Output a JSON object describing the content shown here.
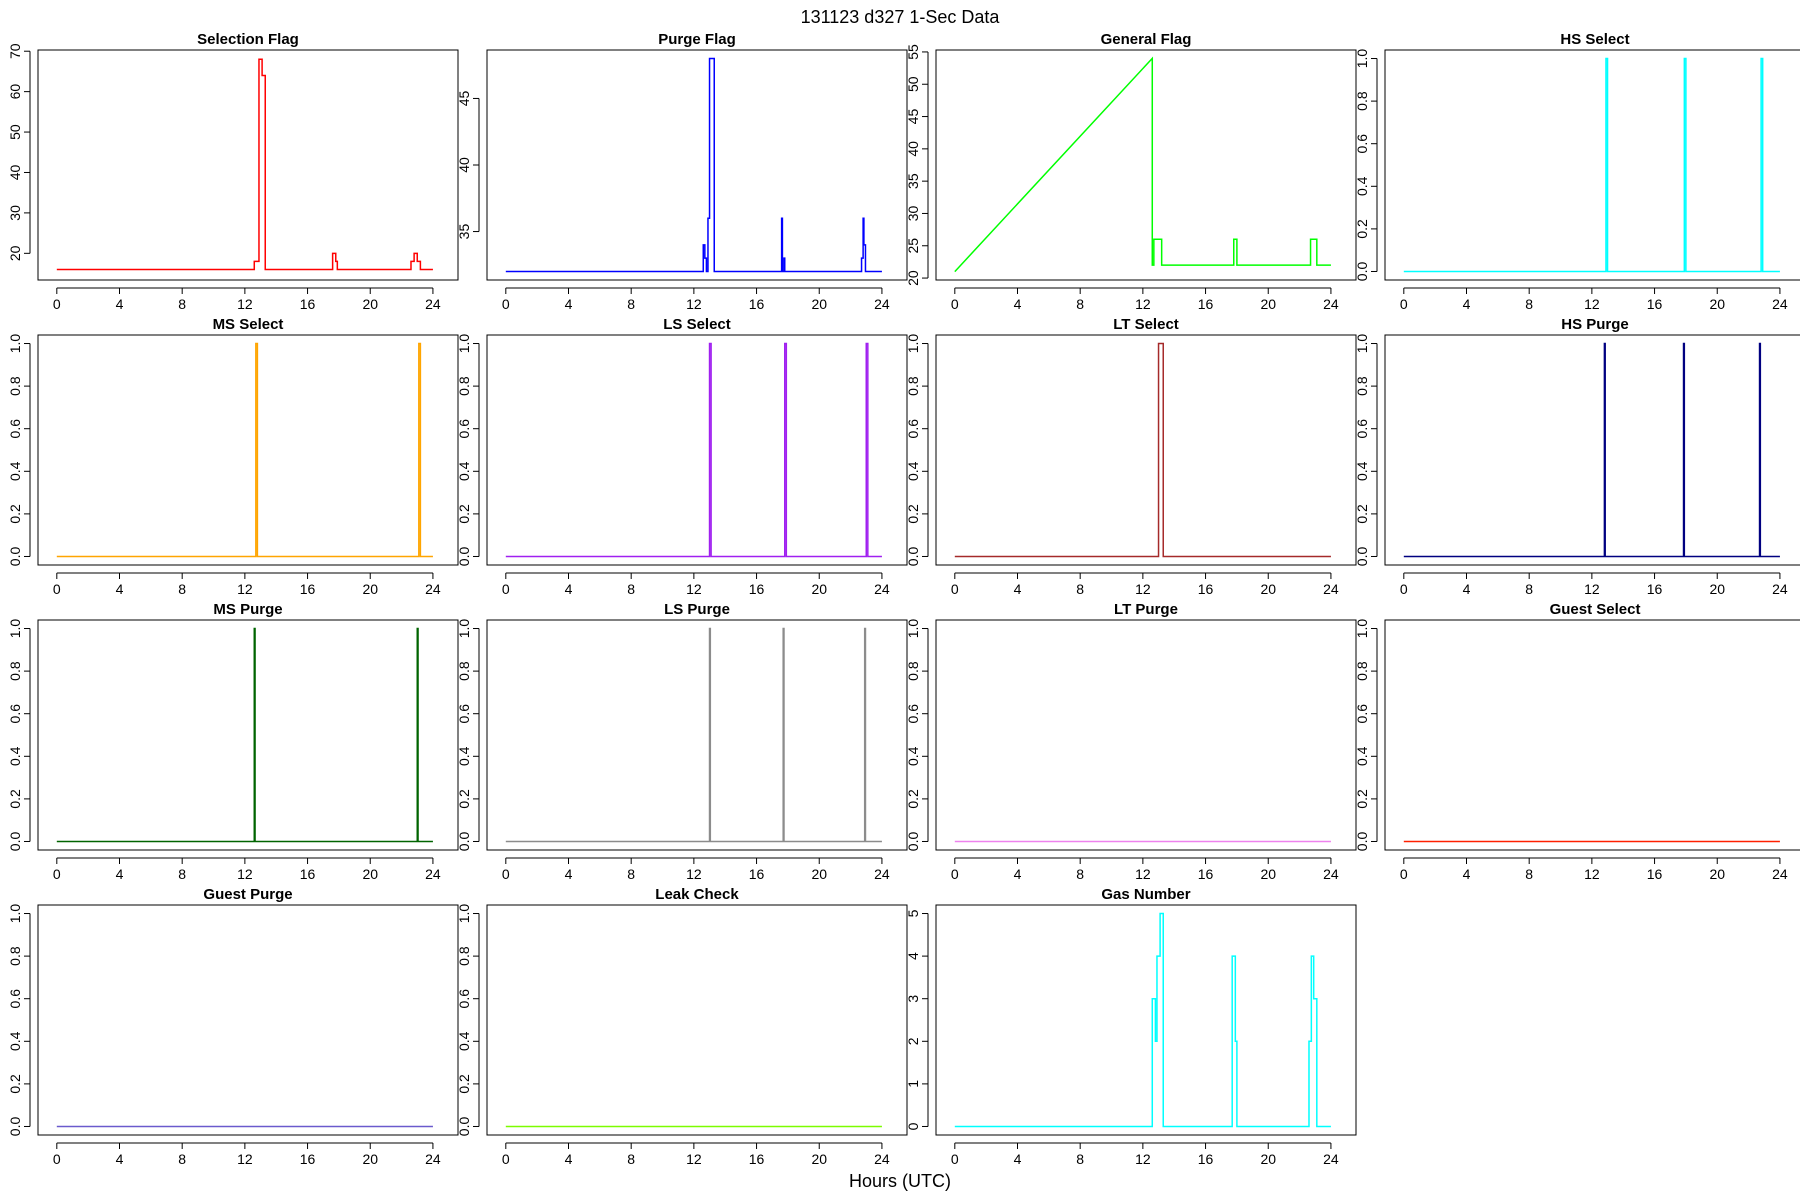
{
  "title": "131123   d327   1-Sec Data",
  "xlabel": "Hours (UTC)",
  "chart_data": [
    {
      "type": "line",
      "title": "Selection Flag",
      "color": "#ff0000",
      "xlim": [
        -1.2,
        25.6
      ],
      "xticks": [
        0,
        4,
        8,
        12,
        16,
        20,
        24
      ],
      "ylim": [
        13.4,
        70.3
      ],
      "yticks": [
        20,
        30,
        40,
        50,
        60,
        70
      ],
      "x": [
        0,
        12.6,
        12.6,
        12.9,
        12.9,
        13.1,
        13.1,
        13.3,
        13.3,
        17.6,
        17.6,
        17.8,
        17.8,
        17.9,
        17.9,
        22.6,
        22.6,
        22.8,
        22.8,
        23.0,
        23.0,
        23.2,
        23.2,
        24
      ],
      "values": [
        16,
        16,
        18,
        18,
        68,
        68,
        64,
        64,
        16,
        16,
        20,
        20,
        18,
        18,
        16,
        16,
        18,
        18,
        20,
        20,
        18,
        18,
        16,
        16
      ]
    },
    {
      "type": "line",
      "title": "Purge Flag",
      "color": "#0000ff",
      "xlim": [
        -1.2,
        25.6
      ],
      "xticks": [
        0,
        4,
        8,
        12,
        16,
        20,
        24
      ],
      "ylim": [
        31.36,
        48.64
      ],
      "yticks": [
        35,
        40,
        45
      ],
      "x": [
        0,
        12.6,
        12.6,
        12.7,
        12.7,
        12.8,
        12.8,
        12.9,
        12.9,
        13.0,
        13.0,
        13.3,
        13.3,
        17.6,
        17.6,
        17.65,
        17.65,
        17.75,
        17.75,
        17.8,
        17.8,
        22.7,
        22.7,
        22.8,
        22.8,
        22.85,
        22.85,
        22.95,
        22.95,
        24
      ],
      "values": [
        32,
        32,
        34,
        34,
        33,
        33,
        32,
        32,
        36,
        36,
        48,
        48,
        32,
        32,
        36,
        36,
        32,
        32,
        33,
        33,
        32,
        32,
        33,
        33,
        36,
        36,
        34,
        34,
        32,
        32
      ]
    },
    {
      "type": "line",
      "title": "General Flag",
      "color": "#00ff00",
      "xlim": [
        -1.2,
        25.6
      ],
      "xticks": [
        0,
        4,
        8,
        12,
        16,
        20,
        24
      ],
      "ylim": [
        19.7,
        55.3
      ],
      "yticks": [
        20,
        25,
        30,
        35,
        40,
        45,
        50,
        55
      ],
      "x": [
        0,
        12.6,
        12.6,
        12.7,
        12.7,
        13.2,
        13.2,
        17.8,
        17.8,
        18.0,
        18.0,
        22.7,
        22.7,
        23.1,
        23.1,
        23.3,
        23.3,
        24
      ],
      "values": [
        21,
        54,
        22,
        22,
        26,
        26,
        22,
        22,
        26,
        26,
        22,
        22,
        26,
        26,
        22,
        22,
        22,
        22
      ]
    },
    {
      "type": "line",
      "title": "HS Select",
      "color": "#00ffff",
      "xlim": [
        -1.2,
        25.6
      ],
      "xticks": [
        0,
        4,
        8,
        12,
        16,
        20,
        24
      ],
      "ylim": [
        -0.04,
        1.04
      ],
      "yticks": [
        {
          "value": 0,
          "label": "0.0"
        },
        0.2,
        0.4,
        0.6,
        0.8,
        {
          "value": 1,
          "label": "1.0"
        }
      ],
      "x": [
        0,
        12.9,
        12.9,
        13.0,
        13.0,
        17.9,
        17.9,
        18.0,
        18.0,
        22.8,
        22.8,
        22.9,
        22.9,
        24
      ],
      "values": [
        0,
        0,
        1,
        1,
        0,
        0,
        1,
        1,
        0,
        0,
        1,
        1,
        0,
        0
      ]
    },
    {
      "type": "line",
      "title": "MS Select",
      "color": "#ffa500",
      "xlim": [
        -1.2,
        25.6
      ],
      "xticks": [
        0,
        4,
        8,
        12,
        16,
        20,
        24
      ],
      "ylim": [
        -0.04,
        1.04
      ],
      "yticks": [
        {
          "value": 0,
          "label": "0.0"
        },
        0.2,
        0.4,
        0.6,
        0.8,
        {
          "value": 1,
          "label": "1.0"
        }
      ],
      "x": [
        0,
        12.7,
        12.7,
        12.8,
        12.8,
        23.1,
        23.1,
        23.2,
        23.2,
        24
      ],
      "values": [
        0,
        0,
        1,
        1,
        0,
        0,
        1,
        1,
        0,
        0
      ]
    },
    {
      "type": "line",
      "title": "LS Select",
      "color": "#a020f0",
      "xlim": [
        -1.2,
        25.6
      ],
      "xticks": [
        0,
        4,
        8,
        12,
        16,
        20,
        24
      ],
      "ylim": [
        -0.04,
        1.04
      ],
      "yticks": [
        {
          "value": 0,
          "label": "0.0"
        },
        0.2,
        0.4,
        0.6,
        0.8,
        {
          "value": 1,
          "label": "1.0"
        }
      ],
      "x": [
        0,
        13.0,
        13.0,
        13.1,
        13.1,
        17.8,
        17.8,
        17.9,
        17.9,
        23.0,
        23.0,
        23.1,
        23.1,
        24
      ],
      "values": [
        0,
        0,
        1,
        1,
        0,
        0,
        1,
        1,
        0,
        0,
        1,
        1,
        0,
        0
      ]
    },
    {
      "type": "line",
      "title": "LT Select",
      "color": "#a52a2a",
      "xlim": [
        -1.2,
        25.6
      ],
      "xticks": [
        0,
        4,
        8,
        12,
        16,
        20,
        24
      ],
      "ylim": [
        -0.04,
        1.04
      ],
      "yticks": [
        {
          "value": 0,
          "label": "0.0"
        },
        0.2,
        0.4,
        0.6,
        0.8,
        {
          "value": 1,
          "label": "1.0"
        }
      ],
      "x": [
        0,
        13.0,
        13.0,
        13.3,
        13.3,
        24
      ],
      "values": [
        0,
        0,
        1,
        1,
        0,
        0
      ]
    },
    {
      "type": "line",
      "title": "HS Purge",
      "color": "#000080",
      "xlim": [
        -1.2,
        25.6
      ],
      "xticks": [
        0,
        4,
        8,
        12,
        16,
        20,
        24
      ],
      "ylim": [
        -0.04,
        1.04
      ],
      "yticks": [
        {
          "value": 0,
          "label": "0.0"
        },
        0.2,
        0.4,
        0.6,
        0.8,
        {
          "value": 1,
          "label": "1.0"
        }
      ],
      "x": [
        0,
        12.8,
        12.8,
        12.85,
        12.85,
        17.85,
        17.85,
        17.9,
        17.9,
        22.7,
        22.7,
        22.75,
        22.75,
        24
      ],
      "values": [
        0,
        0,
        1,
        1,
        0,
        0,
        1,
        1,
        0,
        0,
        1,
        1,
        0,
        0
      ]
    },
    {
      "type": "line",
      "title": "MS Purge",
      "color": "#006400",
      "xlim": [
        -1.2,
        25.6
      ],
      "xticks": [
        0,
        4,
        8,
        12,
        16,
        20,
        24
      ],
      "ylim": [
        -0.04,
        1.04
      ],
      "yticks": [
        {
          "value": 0,
          "label": "0.0"
        },
        0.2,
        0.4,
        0.6,
        0.8,
        {
          "value": 1,
          "label": "1.0"
        }
      ],
      "x": [
        0,
        12.6,
        12.6,
        12.65,
        12.65,
        23.0,
        23.0,
        23.05,
        23.05,
        24
      ],
      "values": [
        0,
        0,
        1,
        1,
        0,
        0,
        1,
        1,
        0,
        0
      ]
    },
    {
      "type": "line",
      "title": "LS Purge",
      "color": "#8c8c8c",
      "xlim": [
        -1.2,
        25.6
      ],
      "xticks": [
        0,
        4,
        8,
        12,
        16,
        20,
        24
      ],
      "ylim": [
        -0.04,
        1.04
      ],
      "yticks": [
        {
          "value": 0,
          "label": "0.0"
        },
        0.2,
        0.4,
        0.6,
        0.8,
        {
          "value": 1,
          "label": "1.0"
        }
      ],
      "x": [
        0,
        13.0,
        13.0,
        13.05,
        13.05,
        17.7,
        17.7,
        17.75,
        17.75,
        22.9,
        22.9,
        22.95,
        22.95,
        24
      ],
      "values": [
        0,
        0,
        1,
        1,
        0,
        0,
        1,
        1,
        0,
        0,
        1,
        1,
        0,
        0
      ]
    },
    {
      "type": "line",
      "title": "LT Purge",
      "color": "#ee82ee",
      "xlim": [
        -1.2,
        25.6
      ],
      "xticks": [
        0,
        4,
        8,
        12,
        16,
        20,
        24
      ],
      "ylim": [
        -0.04,
        1.04
      ],
      "yticks": [
        {
          "value": 0,
          "label": "0.0"
        },
        0.2,
        0.4,
        0.6,
        0.8,
        {
          "value": 1,
          "label": "1.0"
        }
      ],
      "x": [
        0,
        24
      ],
      "values": [
        0,
        0
      ]
    },
    {
      "type": "line",
      "title": "Guest Select",
      "color": "#ff2000",
      "xlim": [
        -1.2,
        25.6
      ],
      "xticks": [
        0,
        4,
        8,
        12,
        16,
        20,
        24
      ],
      "ylim": [
        -0.04,
        1.04
      ],
      "yticks": [
        {
          "value": 0,
          "label": "0.0"
        },
        0.2,
        0.4,
        0.6,
        0.8,
        {
          "value": 1,
          "label": "1.0"
        }
      ],
      "x": [
        0,
        24
      ],
      "values": [
        0,
        0
      ]
    },
    {
      "type": "line",
      "title": "Guest Purge",
      "color": "#6a5acd",
      "xlim": [
        -1.2,
        25.6
      ],
      "xticks": [
        0,
        4,
        8,
        12,
        16,
        20,
        24
      ],
      "ylim": [
        -0.04,
        1.04
      ],
      "yticks": [
        {
          "value": 0,
          "label": "0.0"
        },
        0.2,
        0.4,
        0.6,
        0.8,
        {
          "value": 1,
          "label": "1.0"
        }
      ],
      "x": [
        0,
        24
      ],
      "values": [
        0,
        0
      ]
    },
    {
      "type": "line",
      "title": "Leak Check",
      "color": "#7cfc00",
      "xlim": [
        -1.2,
        25.6
      ],
      "xticks": [
        0,
        4,
        8,
        12,
        16,
        20,
        24
      ],
      "ylim": [
        -0.04,
        1.04
      ],
      "yticks": [
        {
          "value": 0,
          "label": "0.0"
        },
        0.2,
        0.4,
        0.6,
        0.8,
        {
          "value": 1,
          "label": "1.0"
        }
      ],
      "x": [
        0,
        24
      ],
      "values": [
        0,
        0
      ]
    },
    {
      "type": "line",
      "title": "Gas Number",
      "color": "#00ffff",
      "xlim": [
        -1.2,
        25.6
      ],
      "xticks": [
        0,
        4,
        8,
        12,
        16,
        20,
        24
      ],
      "ylim": [
        -0.2,
        5.2
      ],
      "yticks": [
        0,
        1,
        2,
        3,
        4,
        5
      ],
      "x": [
        0,
        12.6,
        12.6,
        12.8,
        12.8,
        12.9,
        12.9,
        13.1,
        13.1,
        13.3,
        13.3,
        17.7,
        17.7,
        17.9,
        17.9,
        18.0,
        18.0,
        22.6,
        22.6,
        22.75,
        22.75,
        22.9,
        22.9,
        23.1,
        23.1,
        24
      ],
      "values": [
        0,
        0,
        3,
        3,
        2,
        2,
        4,
        4,
        5,
        5,
        0,
        0,
        4,
        4,
        2,
        2,
        0,
        0,
        2,
        2,
        4,
        4,
        3,
        3,
        0,
        0
      ]
    }
  ]
}
